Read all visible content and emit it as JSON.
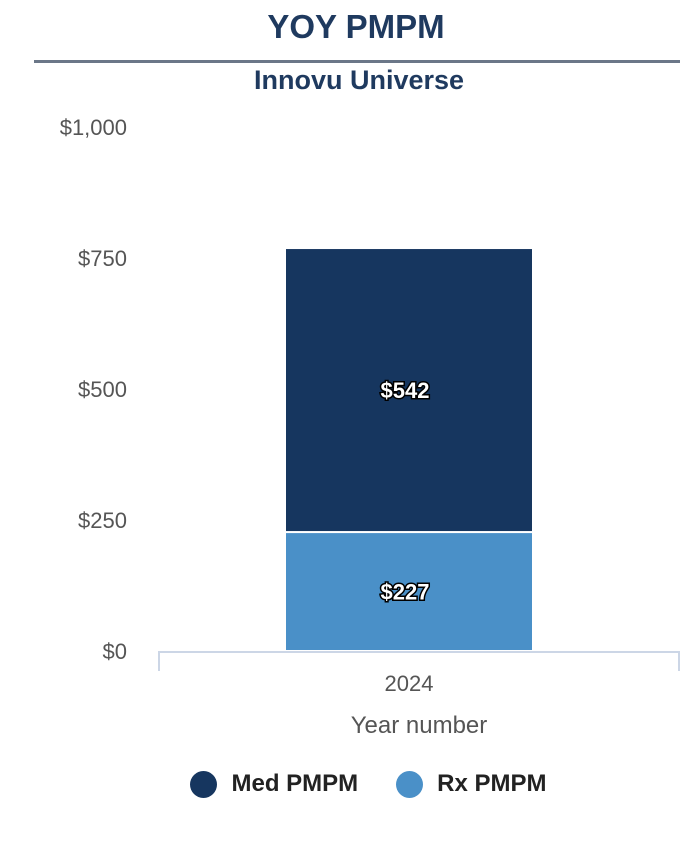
{
  "title": "YOY PMPM",
  "subtitle": "Innovu Universe",
  "colors": {
    "med": "#16365f",
    "rx": "#4a90c8",
    "axis": "#ccd6e6",
    "text": "#555555",
    "title": "#1f3a5f"
  },
  "chart_data": {
    "type": "bar",
    "stacked": true,
    "categories": [
      "2024"
    ],
    "series": [
      {
        "name": "Rx PMPM",
        "values": [
          227
        ],
        "color": "#4a90c8",
        "label": "$227"
      },
      {
        "name": "Med PMPM",
        "values": [
          542
        ],
        "color": "#16365f",
        "label": "$542"
      }
    ],
    "xlabel": "Year number",
    "ylabel": "",
    "ylim": [
      0,
      1000
    ],
    "yticks": [
      0,
      250,
      500,
      750,
      1000
    ],
    "ytick_labels": [
      "$0",
      "$250",
      "$500",
      "$750",
      "$1,000"
    ],
    "grid": false,
    "legend_position": "bottom"
  },
  "legend": [
    {
      "label": "Med PMPM",
      "color": "#16365f"
    },
    {
      "label": "Rx PMPM",
      "color": "#4a90c8"
    }
  ]
}
